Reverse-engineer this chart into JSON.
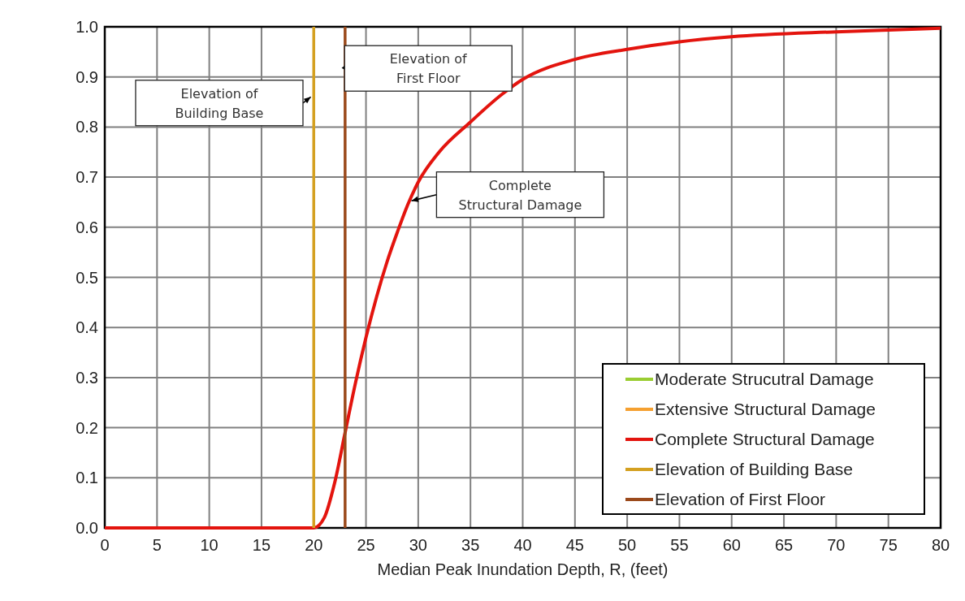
{
  "chart_data": {
    "type": "line",
    "xlabel": "Median Peak Inundation Depth, R, (feet)",
    "xlim": [
      0,
      80
    ],
    "ylim": [
      0,
      1
    ],
    "xticks": [
      0,
      5,
      10,
      15,
      20,
      25,
      30,
      35,
      40,
      45,
      50,
      55,
      60,
      65,
      70,
      75,
      80
    ],
    "yticks": [
      {
        "value": 0,
        "label": "0.0"
      },
      {
        "value": 0.1,
        "label": "0.1"
      },
      {
        "value": 0.2,
        "label": "0.2"
      },
      {
        "value": 0.3,
        "label": "0.3"
      },
      {
        "value": 0.4,
        "label": "0.4"
      },
      {
        "value": 0.5,
        "label": "0.5"
      },
      {
        "value": 0.6,
        "label": "0.6"
      },
      {
        "value": 0.7,
        "label": "0.7"
      },
      {
        "value": 0.8,
        "label": "0.8"
      },
      {
        "value": 0.9,
        "label": "0.9"
      },
      {
        "value": 1,
        "label": "1.0"
      }
    ],
    "grid": true,
    "legend": "bottom right",
    "marker": "none",
    "line_style": "solid",
    "series": [
      {
        "name": "Moderate Strucutral Damage",
        "color": "#9acd32"
      },
      {
        "name": "Extensive Structural Damage",
        "color": "#f5a030"
      },
      {
        "name": "Complete Structural Damage",
        "color": "#e3140e",
        "x": [
          0,
          20,
          21,
          22,
          23,
          24,
          25,
          26,
          27,
          28,
          29,
          30,
          32,
          35,
          38,
          40,
          45,
          50,
          55,
          60,
          70,
          80
        ],
        "values": [
          0,
          0,
          0.02,
          0.09,
          0.19,
          0.29,
          0.38,
          0.46,
          0.53,
          0.59,
          0.645,
          0.69,
          0.75,
          0.81,
          0.865,
          0.895,
          0.935,
          0.955,
          0.97,
          0.98,
          0.99,
          0.997
        ]
      },
      {
        "name": "Elevation of Building Base",
        "color": "#d4a020",
        "x": [
          20,
          20
        ],
        "values": [
          0,
          1
        ]
      },
      {
        "name": "Elevation of First Floor",
        "color": "#9b4a1c",
        "x": [
          23,
          23
        ],
        "values": [
          0,
          1
        ]
      }
    ],
    "annotations": [
      "Elevation of Building Base",
      "Elevation of First Floor",
      "Complete Structural Damage"
    ]
  }
}
